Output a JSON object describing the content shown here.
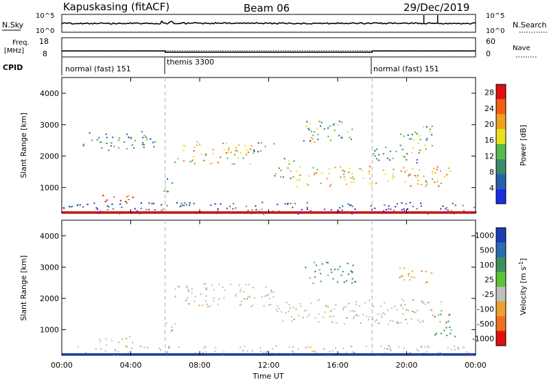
{
  "header": {
    "station": "Kapuskasing (fitACF)",
    "beam": "Beam 06",
    "date": "29/Dec/2019"
  },
  "strip_noise": {
    "left_label": "N.Sky",
    "right_label": "N.Search",
    "left_ticks": [
      "10^5",
      "10^0"
    ],
    "right_ticks": [
      "10^5",
      "10^0"
    ]
  },
  "strip_freq": {
    "left_label_1": "Freq.",
    "left_label_2": "[MHz]",
    "right_label": "Nave",
    "left_ticks": [
      "18",
      "8"
    ],
    "right_ticks": [
      "60",
      "0"
    ],
    "freq_level_mhz": 11.5,
    "nave_level": 20
  },
  "cpid": {
    "label": "CPID",
    "segments": [
      {
        "name": "normal (fast) 151",
        "start_h": 0,
        "end_h": 6
      },
      {
        "name": "themis 3300",
        "start_h": 6,
        "end_h": 18
      },
      {
        "name": "normal (fast) 151",
        "start_h": 18,
        "end_h": 24
      }
    ]
  },
  "chart_data": [
    {
      "type": "heatmap",
      "title": "",
      "xlabel": "Time UT",
      "ylabel": "Slant Range [km]",
      "xlim_hours": [
        0,
        24
      ],
      "x_tick_labels": [
        "00:00",
        "04:00",
        "08:00",
        "12:00",
        "16:00",
        "20:00",
        "00:00"
      ],
      "ylim_km": [
        180,
        4500
      ],
      "y_ticks": [
        1000,
        2000,
        3000,
        4000
      ],
      "colorbar_label": "Power [dB]",
      "colorbar_ticks": [
        4,
        8,
        12,
        16,
        20,
        24,
        28
      ],
      "colorbar_range": [
        0,
        30
      ],
      "echo_regions": [
        {
          "t0": 2.0,
          "t1": 4.1,
          "r0": 520,
          "r1": 800,
          "value": 26
        },
        {
          "t0": 1.2,
          "t1": 5.5,
          "r0": 2200,
          "r1": 2800,
          "value": 9
        },
        {
          "t0": 5.8,
          "t1": 6.6,
          "r0": 850,
          "r1": 1300,
          "value": 10
        },
        {
          "t0": 6.5,
          "t1": 11.0,
          "r0": 1750,
          "r1": 2500,
          "value": 18
        },
        {
          "t0": 11.0,
          "t1": 12.3,
          "r0": 2100,
          "r1": 2500,
          "value": 10
        },
        {
          "t0": 12.3,
          "t1": 13.5,
          "r0": 1300,
          "r1": 2000,
          "value": 14
        },
        {
          "t0": 13.5,
          "t1": 22.5,
          "r0": 1050,
          "r1": 1700,
          "value": 18
        },
        {
          "t0": 14.2,
          "t1": 15.0,
          "r0": 2350,
          "r1": 2650,
          "value": 26
        },
        {
          "t0": 14.0,
          "t1": 17.0,
          "r0": 2500,
          "r1": 3200,
          "value": 12
        },
        {
          "t0": 18.0,
          "t1": 21.0,
          "r0": 1800,
          "r1": 2300,
          "value": 11
        },
        {
          "t0": 19.5,
          "t1": 21.5,
          "r0": 2200,
          "r1": 3000,
          "value": 12
        },
        {
          "t0": 0.0,
          "t1": 24.0,
          "r0": 180,
          "r1": 550,
          "value": 6
        }
      ]
    },
    {
      "type": "heatmap",
      "title": "",
      "xlabel": "Time UT",
      "ylabel": "Slant Range [km]",
      "xlim_hours": [
        0,
        24
      ],
      "x_tick_labels": [
        "00:00",
        "04:00",
        "08:00",
        "12:00",
        "16:00",
        "20:00",
        "00:00"
      ],
      "ylim_km": [
        180,
        4500
      ],
      "y_ticks": [
        1000,
        2000,
        3000,
        4000
      ],
      "colorbar_label": "Velocity [m s^-1]",
      "colorbar_ticks": [
        "1000",
        "500",
        "100",
        "25",
        "-25",
        "-100",
        "-500",
        "-1000"
      ],
      "colorbar_colors": [
        "#1a3fb0",
        "#2a6db3",
        "#3f8f5a",
        "#5fc23a",
        "#c0c0c0",
        "#f0a030",
        "#f07020",
        "#e01010"
      ],
      "echo_regions": [
        {
          "t0": 2.0,
          "t1": 4.1,
          "r0": 520,
          "r1": 800,
          "value_class": "±25"
        },
        {
          "t0": 5.8,
          "t1": 6.6,
          "r0": 850,
          "r1": 1300,
          "value_class": "±25"
        },
        {
          "t0": 6.5,
          "t1": 12.3,
          "r0": 1750,
          "r1": 2500,
          "value_class": "±25"
        },
        {
          "t0": 12.3,
          "t1": 22.0,
          "r0": 1200,
          "r1": 2000,
          "value_class": "±25"
        },
        {
          "t0": 14.0,
          "t1": 17.0,
          "r0": 2500,
          "r1": 3200,
          "value_class": "100"
        },
        {
          "t0": 19.5,
          "t1": 21.5,
          "r0": 2500,
          "r1": 3000,
          "value_class": "-100"
        },
        {
          "t0": 21.5,
          "t1": 22.8,
          "r0": 800,
          "r1": 1600,
          "value_class": "100"
        },
        {
          "t0": 0.0,
          "t1": 24.0,
          "r0": 180,
          "r1": 500,
          "value_class": "-25"
        }
      ]
    }
  ],
  "colors": {
    "power_scale": [
      "#1a2ee0",
      "#2a5fb0",
      "#3e8a6a",
      "#58b84a",
      "#e8e020",
      "#f0a020",
      "#f06010",
      "#e01010"
    ],
    "dash_line": "#b0b0b0"
  }
}
